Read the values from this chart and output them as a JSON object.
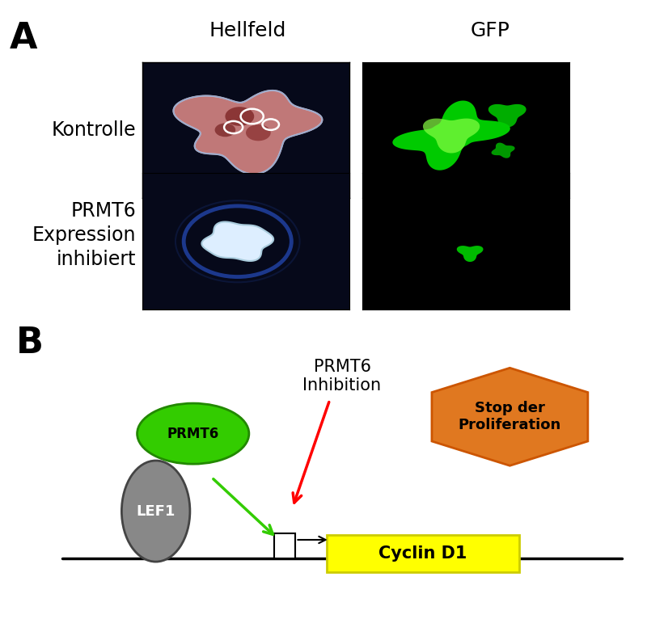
{
  "panel_A_label": "A",
  "panel_B_label": "B",
  "hellfeld_label": "Hellfeld",
  "gfp_label": "GFP",
  "kontrolle_label": "Kontrolle",
  "inhibiert_label": "PRMT6\nExpression\ninhibiert",
  "prmt6_inhibition_label": "PRMT6\nInhibition",
  "stop_label": "Stop der\nProliferation",
  "cyclin_label": "Cyclin D1",
  "lef1_label": "LEF1",
  "prmt6_label": "PRMT6",
  "green_color": "#33cc00",
  "orange_color": "#e07820",
  "yellow_color": "#ffff00",
  "gray_color": "#909090",
  "lef1_gray": "#888888",
  "background_white": "#ffffff"
}
